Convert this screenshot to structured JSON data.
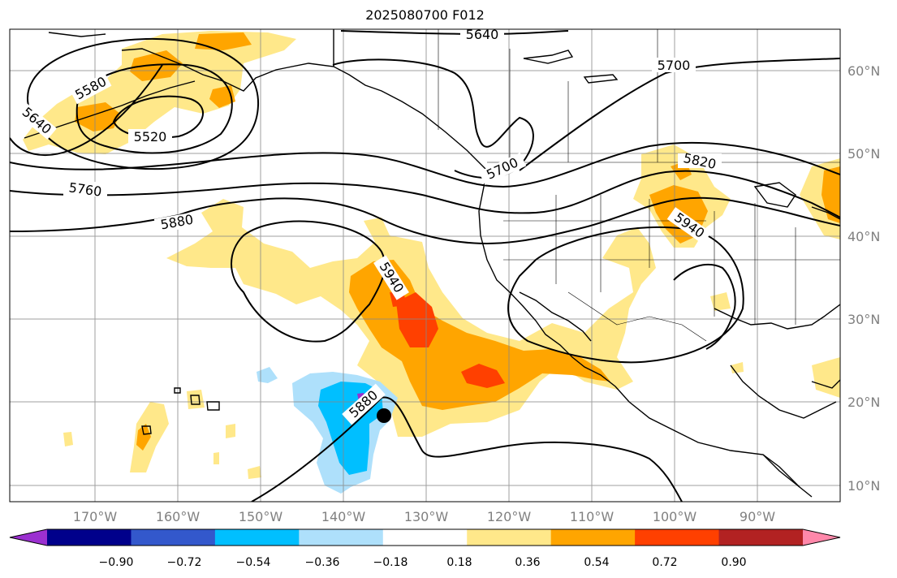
{
  "title": "2025080700 F012",
  "lat_labels": [
    "60°N",
    "50°N",
    "40°N",
    "30°N",
    "20°N",
    "10°N"
  ],
  "lon_labels": [
    "170°W",
    "160°W",
    "150°W",
    "140°W",
    "130°W",
    "120°W",
    "110°W",
    "100°W",
    "90°W"
  ],
  "contour_labels": [
    "5640",
    "5700",
    "5580",
    "5640",
    "5520",
    "5760",
    "5700",
    "5820",
    "5880",
    "5940",
    "5940",
    "5880"
  ],
  "colorbar": {
    "tick_labels": [
      "−0.90",
      "−0.72",
      "−0.54",
      "−0.36",
      "−0.18",
      "0.18",
      "0.36",
      "0.54",
      "0.72",
      "0.90"
    ],
    "colors": [
      "#9b30d0",
      "#00008b",
      "#3358cc",
      "#00bfff",
      "#aee0fb",
      "#ffffff",
      "#ffe88a",
      "#ffa500",
      "#ff4000",
      "#b22222",
      "#ff88aa"
    ]
  },
  "marker": {
    "name": "storm-position-marker",
    "lon": -135,
    "lat": 18.5
  }
}
